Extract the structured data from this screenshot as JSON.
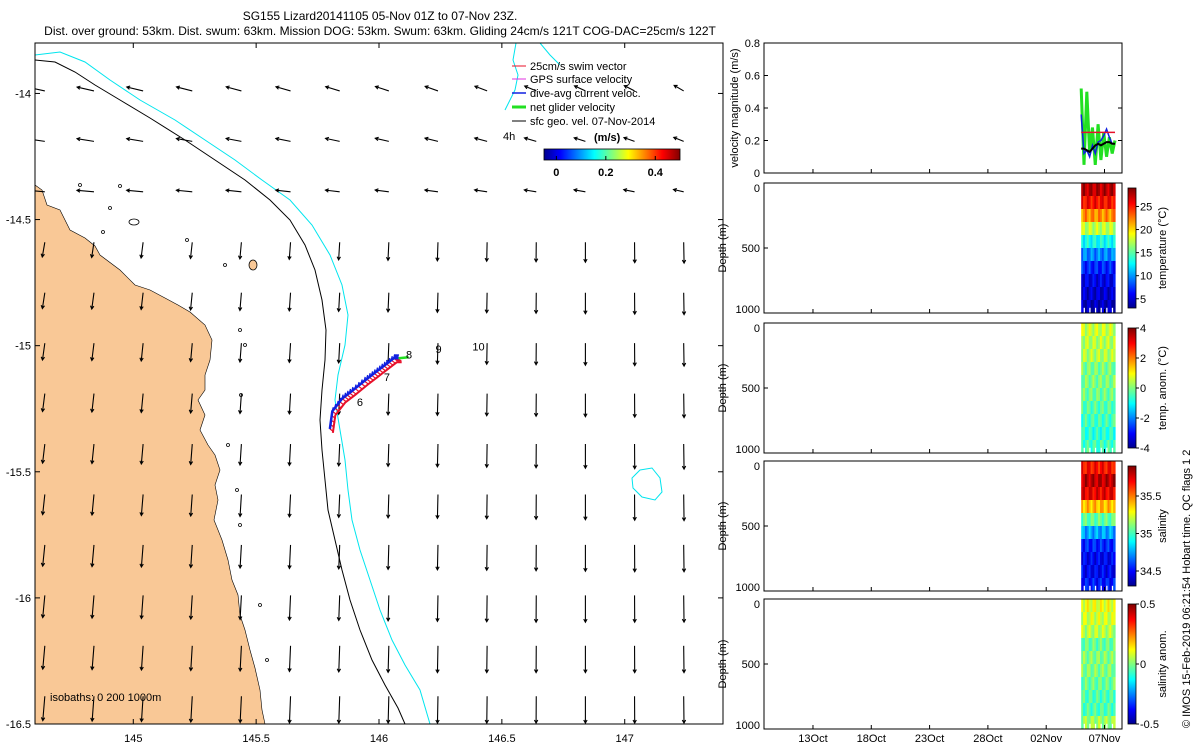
{
  "title_line1": "SG155 Lizard20141105 05-Nov 01Z to 07-Nov 23Z.",
  "title_line2": "Dist. over ground: 53km. Dist. swum: 63km. Mission DOG: 53km. Swum: 63km. Gliding 24cm/s 121T COG-DAC=25cm/s 122T",
  "credit": "© IMOS 15-Feb-2019 06:21:54 Hobart time. QC flags 1  2",
  "colors": {
    "land": "#f9c896",
    "isobath_200": "#000000",
    "isobath_1000": "#00e5ee",
    "swim_vector": "#e8102a",
    "gps_velocity": "#e030e0",
    "dac_velocity": "#1020e0",
    "net_velocity": "#22e022",
    "sfc_geo_velocity": "#000000"
  },
  "chart_data": [
    {
      "type": "quiver-map",
      "title": "SG155 Lizard20141105 05-Nov 01Z to 07-Nov 23Z.",
      "xlim": [
        144.6,
        147.4
      ],
      "ylim": [
        -16.5,
        -13.8
      ],
      "xticks": [
        145,
        145.5,
        146,
        146.5,
        147
      ],
      "xtick_labels": [
        "145",
        "145.5",
        "146",
        "146.5",
        "147"
      ],
      "yticks": [
        -14,
        -14.5,
        -15,
        -15.5,
        -16,
        -16.5
      ],
      "ytick_labels": [
        "-14",
        "-14.5",
        "-15",
        "-15.5",
        "-16",
        "-16.5"
      ],
      "legend": {
        "placement": "top-right",
        "entries": [
          "25cm/s swim vector",
          "GPS surface velocity",
          "dive-avg current veloc.",
          "net glider velocity",
          "sfc geo. vel. 07-Nov-2014"
        ],
        "note": "4h"
      },
      "colorbar": {
        "label": "(m/s)",
        "range": [
          -0.05,
          0.5
        ],
        "ticks": [
          0,
          0.2,
          0.4
        ],
        "tick_labels": [
          "0",
          "0.2",
          "0.4"
        ]
      },
      "isobath_note": "isobaths: 0   200  1000m",
      "track_labels": [
        {
          "text": "6",
          "lon": 145.91,
          "lat": -15.24
        },
        {
          "text": "7",
          "lon": 146.02,
          "lat": -15.14
        },
        {
          "text": "8",
          "lon": 146.11,
          "lat": -15.05
        },
        {
          "text": "9",
          "lon": 146.23,
          "lat": -15.03
        },
        {
          "text": "10",
          "lon": 146.38,
          "lat": -15.02
        }
      ],
      "track": [
        {
          "lon": 145.8,
          "lat": -15.33
        },
        {
          "lon": 145.81,
          "lat": -15.26
        },
        {
          "lon": 145.85,
          "lat": -15.21
        },
        {
          "lon": 145.89,
          "lat": -15.18
        },
        {
          "lon": 145.94,
          "lat": -15.14
        },
        {
          "lon": 145.98,
          "lat": -15.11
        },
        {
          "lon": 146.02,
          "lat": -15.08
        },
        {
          "lon": 146.06,
          "lat": -15.05
        },
        {
          "lon": 146.08,
          "lat": -15.05
        }
      ],
      "sfc_geo_grid": {
        "lon_start": 144.6,
        "lon_step": 0.2,
        "lat_start": -14.0,
        "lat_step": -0.2
      }
    },
    {
      "type": "line",
      "ylabel": "velocity magnitude (m/s)",
      "ylim": [
        0,
        0.8
      ],
      "yticks": [
        0,
        0.2,
        0.4,
        0.6,
        0.8
      ],
      "ytick_labels": [
        "0",
        "0.2",
        "0.4",
        "0.6",
        "0.8"
      ],
      "x": [
        0,
        0.25,
        0.5,
        0.75,
        1,
        1.25,
        1.5,
        1.75,
        2,
        2.25,
        2.5,
        2.75,
        3
      ],
      "series": [
        {
          "name": "net glider velocity",
          "color": "#22e022",
          "values": [
            0.52,
            0.05,
            0.5,
            0.12,
            0.28,
            0.05,
            0.3,
            0.08,
            0.25,
            0.1,
            0.22,
            0.12,
            0.2
          ]
        },
        {
          "name": "dive-avg current veloc.",
          "color": "#1020e0",
          "values": [
            0.36,
            0.12,
            0.14,
            0.1,
            0.17,
            0.12,
            0.19,
            0.2,
            0.23,
            0.27,
            0.22,
            0.18,
            0.18
          ]
        },
        {
          "name": "swim vector",
          "color": "#e8102a",
          "values": [
            0.25,
            0.25,
            0.25,
            0.25,
            0.25,
            0.25,
            0.25,
            0.25,
            0.25,
            0.25,
            0.25,
            0.25,
            0.25
          ]
        },
        {
          "name": "sfc geo. vel.",
          "color": "#000000",
          "values": [
            0.15,
            0.15,
            0.14,
            0.13,
            0.15,
            0.17,
            0.18,
            0.17,
            0.18,
            0.19,
            0.19,
            0.18,
            0.18
          ]
        }
      ]
    },
    {
      "type": "heatmap",
      "ylabel": "Depth (m)",
      "ylim": [
        1000,
        0
      ],
      "yticks": [
        0,
        500,
        1000
      ],
      "ytick_labels": [
        "0",
        "500",
        "1000"
      ],
      "colorbar_label": "temperature (°C)",
      "colorbar_range": [
        3,
        29
      ],
      "colorbar_ticks": [
        5,
        10,
        15,
        20,
        25
      ],
      "colorbar_tick_labels": [
        "5",
        "10",
        "15",
        "20",
        "25"
      ],
      "profile_depths": [
        0,
        100,
        200,
        300,
        400,
        500,
        600,
        700,
        800,
        900,
        1000
      ],
      "profile_values": [
        28,
        27,
        24,
        20,
        15,
        11,
        8,
        6,
        5,
        4.5,
        4
      ]
    },
    {
      "type": "heatmap",
      "ylabel": "Depth (m)",
      "ylim": [
        1000,
        0
      ],
      "yticks": [
        0,
        500,
        1000
      ],
      "ytick_labels": [
        "0",
        "500",
        "1000"
      ],
      "colorbar_label": "temp. anom. (°C)",
      "colorbar_range": [
        -4,
        4
      ],
      "colorbar_ticks": [
        -4,
        -2,
        0,
        2,
        4
      ],
      "colorbar_tick_labels": [
        "-4",
        "-2",
        "0",
        "2",
        "4"
      ],
      "profile_depths": [
        0,
        100,
        200,
        300,
        400,
        500,
        600,
        700,
        800,
        900,
        1000
      ],
      "profile_values": [
        0.8,
        0.3,
        0.5,
        0.2,
        -0.3,
        0.2,
        -0.5,
        -0.2,
        -0.8,
        -0.6,
        -0.4
      ]
    },
    {
      "type": "heatmap",
      "ylabel": "Depth (m)",
      "ylim": [
        1000,
        0
      ],
      "yticks": [
        0,
        500,
        1000
      ],
      "ytick_labels": [
        "0",
        "500",
        "1000"
      ],
      "colorbar_label": "salinity",
      "colorbar_range": [
        34.3,
        35.9
      ],
      "colorbar_ticks": [
        34.5,
        35,
        35.5
      ],
      "colorbar_tick_labels": [
        "34.5",
        "35",
        "35.5"
      ],
      "profile_depths": [
        0,
        100,
        200,
        300,
        400,
        500,
        600,
        700,
        800,
        900,
        1000
      ],
      "profile_values": [
        35.6,
        35.75,
        35.85,
        35.6,
        35.2,
        34.9,
        34.6,
        34.5,
        34.45,
        34.5,
        34.55
      ]
    },
    {
      "type": "heatmap",
      "ylabel": "Depth (m)",
      "ylim": [
        1000,
        0
      ],
      "yticks": [
        0,
        500,
        1000
      ],
      "ytick_labels": [
        "0",
        "500",
        "1000"
      ],
      "colorbar_label": "salinity anom.",
      "colorbar_range": [
        -0.5,
        0.5
      ],
      "colorbar_ticks": [
        -0.5,
        0,
        0.5
      ],
      "colorbar_tick_labels": [
        "-0.5",
        "0",
        "0.5"
      ],
      "profile_depths": [
        0,
        100,
        200,
        300,
        400,
        500,
        600,
        700,
        800,
        900,
        1000
      ],
      "profile_values": [
        0.15,
        0.05,
        0.1,
        0.0,
        -0.05,
        0.05,
        -0.05,
        0.0,
        -0.1,
        0.0,
        0.05
      ]
    }
  ],
  "time_axis": {
    "xtick_labels": [
      "13Oct",
      "18Oct",
      "23Oct",
      "28Oct",
      "02Nov",
      "07Nov"
    ],
    "day_offsets": [
      0,
      5,
      10,
      15,
      20,
      25
    ],
    "data_start_day": 23.0,
    "data_end_day": 25.9,
    "xlim_days": [
      -4.2,
      26.5
    ]
  }
}
